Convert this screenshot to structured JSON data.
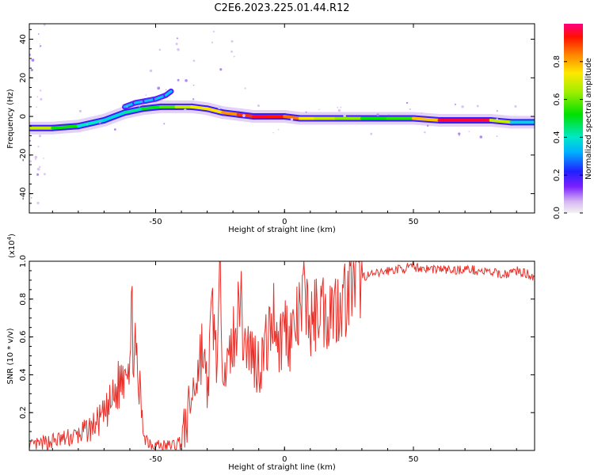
{
  "title": "C2E6.2023.225.01.44.R12",
  "chart_data": [
    {
      "type": "heatmap",
      "title": "C2E6.2023.225.01.44.R12",
      "xlabel": "Height of straight line (km)",
      "ylabel": "Frequency (Hz)",
      "xlim": [
        -99,
        97
      ],
      "ylim": [
        -50,
        48
      ],
      "x_ticks": [
        -50,
        0,
        50
      ],
      "y_ticks": [
        40,
        20,
        0,
        -20,
        -40
      ],
      "colorbar": {
        "label": "Normalized spectral amplitude",
        "range": [
          0,
          1
        ],
        "ticks": [
          "0.0",
          "0.2",
          "0.4",
          "0.6",
          "0.8"
        ]
      },
      "ridge": {
        "x": [
          -99,
          -90,
          -80,
          -70,
          -62,
          -55,
          -48,
          -42,
          -36,
          -30,
          -24,
          -18,
          -12,
          -6,
          0,
          6,
          12,
          20,
          30,
          40,
          50,
          60,
          70,
          80,
          88,
          97
        ],
        "freq": [
          -6,
          -6,
          -5,
          -2,
          2,
          4,
          5,
          5,
          5,
          4,
          2,
          1,
          0,
          0,
          0,
          -1,
          -1,
          -1,
          -1,
          -1,
          -1,
          -2,
          -2,
          -2,
          -3,
          -3
        ],
        "amplitude": [
          0.75,
          0.6,
          0.45,
          0.35,
          0.4,
          0.45,
          0.55,
          0.6,
          0.75,
          0.7,
          0.8,
          0.85,
          0.95,
          0.95,
          0.9,
          0.8,
          0.65,
          0.7,
          0.55,
          0.5,
          0.6,
          0.95,
          0.97,
          0.95,
          0.4,
          0.35
        ]
      },
      "upper_branch": {
        "x": [
          -62,
          -58,
          -54,
          -50,
          -46,
          -44
        ],
        "freq": [
          5,
          7,
          8,
          9,
          11,
          13
        ]
      }
    },
    {
      "type": "line",
      "xlabel": "Height of straight line (km)",
      "ylabel": "SNR (10 * v/v)",
      "y_scale_label": "(x10",
      "y_scale_exp": "4",
      "y_scale_close": ")",
      "xlim": [
        -99,
        97
      ],
      "ylim": [
        0,
        1.0
      ],
      "x_ticks": [
        -50,
        0,
        50
      ],
      "y_ticks": [
        "0.2",
        "0.4",
        "0.6",
        "0.8",
        "1.0"
      ],
      "series": [
        {
          "color": "#e8302a",
          "x": [
            -99,
            -95,
            -90,
            -85,
            -80,
            -75,
            -70,
            -66,
            -63,
            -61,
            -60,
            -59,
            -58,
            -57,
            -56,
            -55,
            -53,
            -50,
            -46,
            -42,
            -40,
            -38,
            -36,
            -34,
            -32,
            -30,
            -28,
            -26,
            -25,
            -24,
            -22,
            -20,
            -19,
            -18,
            -16,
            -14,
            -12,
            -10,
            -8,
            -6,
            -4,
            -2,
            0,
            2,
            4,
            6,
            8,
            10,
            12,
            14,
            16,
            18,
            20,
            22,
            24,
            26,
            28,
            30,
            35,
            40,
            45,
            50,
            55,
            60,
            65,
            70,
            75,
            80,
            85,
            90,
            97
          ],
          "y": [
            0.02,
            0.03,
            0.05,
            0.06,
            0.08,
            0.12,
            0.18,
            0.28,
            0.4,
            0.55,
            0.48,
            0.7,
            0.52,
            0.35,
            0.3,
            0.12,
            0.05,
            0.03,
            0.02,
            0.03,
            0.05,
            0.15,
            0.28,
            0.4,
            0.55,
            0.3,
            0.75,
            0.45,
            0.98,
            0.55,
            0.4,
            0.62,
            0.5,
            0.95,
            0.6,
            0.55,
            0.5,
            0.45,
            0.52,
            0.6,
            0.75,
            0.55,
            0.68,
            0.6,
            0.65,
            0.7,
            0.85,
            0.65,
            0.72,
            0.8,
            0.7,
            0.78,
            0.75,
            0.82,
            0.8,
            0.9,
            0.88,
            0.92,
            0.93,
            0.95,
            0.96,
            0.97,
            0.96,
            0.96,
            0.95,
            0.96,
            0.95,
            0.94,
            0.93,
            0.95,
            0.92
          ]
        }
      ]
    }
  ]
}
